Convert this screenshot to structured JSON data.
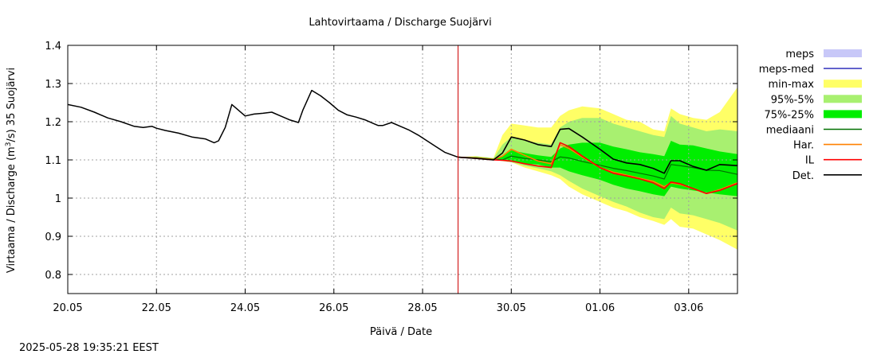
{
  "chart_data": {
    "type": "line",
    "title": "Lahtovirtaama / Discharge  Suojärvi",
    "xlabel": "Päivä / Date",
    "ylabel_prefix": "Virtaama / Discharge (m",
    "ylabel_sup": "3",
    "ylabel_suffix": "/s)  35 Suojärvi",
    "x_unit": "days since 20.05",
    "xlim": [
      0,
      15.1
    ],
    "ylim": [
      0.75,
      1.4
    ],
    "xticks": [
      {
        "x": 0,
        "label": "20.05"
      },
      {
        "x": 2,
        "label": "22.05"
      },
      {
        "x": 4,
        "label": "24.05"
      },
      {
        "x": 6,
        "label": "26.05"
      },
      {
        "x": 8,
        "label": "28.05"
      },
      {
        "x": 10,
        "label": "30.05"
      },
      {
        "x": 12,
        "label": "01.06"
      },
      {
        "x": 14,
        "label": "03.06"
      }
    ],
    "yticks": [
      {
        "y": 0.8,
        "label": "0.8"
      },
      {
        "y": 0.9,
        "label": "0.9"
      },
      {
        "y": 1.0,
        "label": "1"
      },
      {
        "y": 1.1,
        "label": "1.1"
      },
      {
        "y": 1.2,
        "label": "1.2"
      },
      {
        "y": 1.3,
        "label": "1.3"
      },
      {
        "y": 1.4,
        "label": "1.4"
      }
    ],
    "grid": true,
    "forecast_start_x": 8.8,
    "colors": {
      "meps": "#c8c8f8",
      "meps_med": "#4040c0",
      "minmax": "#ffff66",
      "p95_5": "#a8f070",
      "p75_25": "#00ee00",
      "mediaani": "#007000",
      "har": "#ff8000",
      "il": "#ff0000",
      "det": "#000000",
      "now": "#cc0000"
    },
    "legend": {
      "position": "right",
      "entries": [
        {
          "label": "meps",
          "type": "box",
          "color_key": "meps"
        },
        {
          "label": "meps-med",
          "type": "line",
          "color_key": "meps_med"
        },
        {
          "label": "min-max",
          "type": "box",
          "color_key": "minmax"
        },
        {
          "label": "95%-5%",
          "type": "box",
          "color_key": "p95_5"
        },
        {
          "label": "75%-25%",
          "type": "box",
          "color_key": "p75_25"
        },
        {
          "label": "mediaani",
          "type": "line",
          "color_key": "mediaani"
        },
        {
          "label": "Har.",
          "type": "line",
          "color_key": "har"
        },
        {
          "label": "IL",
          "type": "line",
          "color_key": "il"
        },
        {
          "label": "Det.",
          "type": "line",
          "color_key": "det"
        }
      ]
    },
    "observed": {
      "x": [
        0,
        0.3,
        0.6,
        0.9,
        1.2,
        1.5,
        1.7,
        1.9,
        2.0,
        2.2,
        2.5,
        2.8,
        3.1,
        3.3,
        3.4,
        3.55,
        3.7,
        3.8,
        4.0,
        4.2,
        4.4,
        4.6,
        4.8,
        5.0,
        5.2,
        5.3,
        5.5,
        5.7,
        5.9,
        6.1,
        6.3,
        6.5,
        6.7,
        6.9,
        7.0,
        7.1,
        7.3,
        7.5,
        7.7,
        7.9,
        8.1,
        8.3,
        8.5,
        8.8
      ],
      "y": [
        1.245,
        1.238,
        1.225,
        1.21,
        1.2,
        1.188,
        1.185,
        1.188,
        1.183,
        1.177,
        1.17,
        1.16,
        1.155,
        1.145,
        1.15,
        1.185,
        1.245,
        1.235,
        1.215,
        1.22,
        1.222,
        1.225,
        1.215,
        1.205,
        1.198,
        1.23,
        1.282,
        1.268,
        1.25,
        1.23,
        1.218,
        1.212,
        1.205,
        1.195,
        1.19,
        1.19,
        1.198,
        1.188,
        1.178,
        1.165,
        1.15,
        1.135,
        1.12,
        1.107
      ]
    },
    "forecast_x": [
      8.8,
      9.2,
      9.6,
      9.8,
      10.0,
      10.3,
      10.6,
      10.9,
      11.1,
      11.3,
      11.6,
      12.0,
      12.3,
      12.6,
      12.9,
      13.2,
      13.45,
      13.6,
      13.8,
      14.1,
      14.4,
      14.7,
      15.1
    ],
    "bands": {
      "min": [
        1.107,
        1.104,
        1.1,
        1.097,
        1.094,
        1.08,
        1.07,
        1.06,
        1.05,
        1.03,
        1.01,
        0.99,
        0.975,
        0.965,
        0.95,
        0.94,
        0.93,
        0.945,
        0.925,
        0.92,
        0.905,
        0.89,
        0.865
      ],
      "max": [
        1.107,
        1.11,
        1.105,
        1.165,
        1.195,
        1.19,
        1.185,
        1.185,
        1.215,
        1.23,
        1.24,
        1.235,
        1.22,
        1.205,
        1.2,
        1.18,
        1.175,
        1.235,
        1.22,
        1.21,
        1.205,
        1.225,
        1.29
      ],
      "p5": [
        1.107,
        1.104,
        1.1,
        1.097,
        1.094,
        1.085,
        1.078,
        1.07,
        1.06,
        1.045,
        1.025,
        1.005,
        0.99,
        0.978,
        0.962,
        0.95,
        0.945,
        0.975,
        0.96,
        0.955,
        0.945,
        0.935,
        0.915
      ],
      "p95": [
        1.107,
        1.109,
        1.104,
        1.14,
        1.16,
        1.15,
        1.145,
        1.14,
        1.185,
        1.2,
        1.21,
        1.21,
        1.195,
        1.185,
        1.175,
        1.165,
        1.16,
        1.215,
        1.195,
        1.185,
        1.175,
        1.18,
        1.175
      ],
      "p25": [
        1.107,
        1.105,
        1.101,
        1.098,
        1.095,
        1.09,
        1.088,
        1.08,
        1.08,
        1.07,
        1.06,
        1.048,
        1.035,
        1.025,
        1.018,
        1.01,
        1.005,
        1.03,
        1.025,
        1.02,
        1.015,
        1.01,
        1.005
      ],
      "p75": [
        1.107,
        1.107,
        1.103,
        1.11,
        1.125,
        1.118,
        1.112,
        1.108,
        1.13,
        1.14,
        1.145,
        1.145,
        1.135,
        1.128,
        1.12,
        1.115,
        1.11,
        1.15,
        1.14,
        1.138,
        1.13,
        1.122,
        1.115
      ]
    },
    "series": [
      {
        "name": "mediaani",
        "color_key": "mediaani",
        "y": [
          1.107,
          1.106,
          1.102,
          1.1,
          1.11,
          1.104,
          1.1,
          1.095,
          1.108,
          1.105,
          1.096,
          1.086,
          1.078,
          1.072,
          1.065,
          1.058,
          1.05,
          1.088,
          1.085,
          1.08,
          1.073,
          1.072,
          1.062
        ]
      },
      {
        "name": "Har.",
        "color_key": "har",
        "y": [
          1.107,
          1.105,
          1.101,
          1.11,
          1.128,
          1.112,
          1.097,
          1.09,
          1.14,
          1.13,
          1.108,
          1.08,
          1.068,
          1.06,
          1.052,
          1.044,
          1.03,
          1.04,
          1.036,
          1.025,
          1.012,
          1.022,
          1.04
        ]
      },
      {
        "name": "IL",
        "color_key": "il",
        "y": [
          1.107,
          1.104,
          1.1,
          1.099,
          1.097,
          1.09,
          1.084,
          1.08,
          1.145,
          1.135,
          1.11,
          1.08,
          1.065,
          1.058,
          1.05,
          1.04,
          1.025,
          1.042,
          1.038,
          1.025,
          1.012,
          1.02,
          1.038
        ]
      },
      {
        "name": "Det.",
        "color_key": "det",
        "y": [
          1.107,
          1.104,
          1.1,
          1.118,
          1.16,
          1.152,
          1.14,
          1.135,
          1.18,
          1.182,
          1.16,
          1.128,
          1.102,
          1.092,
          1.088,
          1.078,
          1.065,
          1.098,
          1.098,
          1.083,
          1.073,
          1.088,
          1.085
        ]
      }
    ]
  },
  "footer": {
    "timestamp": "2025-05-28 19:35:21 EEST"
  }
}
